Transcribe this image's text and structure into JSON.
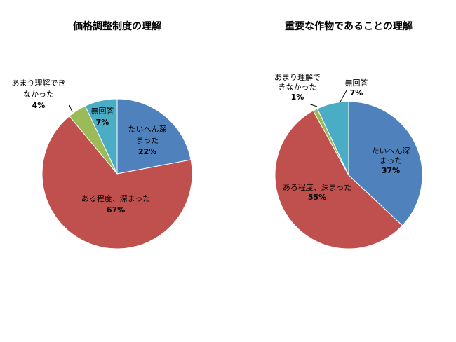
{
  "chart_data": [
    {
      "type": "pie",
      "title": "価格調整制度の理解",
      "slices": [
        {
          "label": "たいへん深まった",
          "lines": [
            "たいへん深",
            "まった"
          ],
          "value": 22,
          "pct": "22%",
          "color": "#4f81bd"
        },
        {
          "label": "ある程度、深まった",
          "lines": [
            "ある程度、深まった"
          ],
          "value": 67,
          "pct": "67%",
          "color": "#c0504d"
        },
        {
          "label": "あまり理解できなかった",
          "lines": [
            "あまり理解でき",
            "なかった"
          ],
          "value": 4,
          "pct": "4%",
          "color": "#9bbb59"
        },
        {
          "label": "無回答",
          "lines": [
            "無回答"
          ],
          "value": 7,
          "pct": "7%",
          "color": "#4bacc6"
        }
      ]
    },
    {
      "type": "pie",
      "title": "重要な作物であることの理解",
      "slices": [
        {
          "label": "たいへん深まった",
          "lines": [
            "たいへん深",
            "まった"
          ],
          "value": 37,
          "pct": "37%",
          "color": "#4f81bd"
        },
        {
          "label": "ある程度、深まった",
          "lines": [
            "ある程度、深まった"
          ],
          "value": 55,
          "pct": "55%",
          "color": "#c0504d"
        },
        {
          "label": "あまり理解できなかった",
          "lines": [
            "あまり理解で",
            "きなかった"
          ],
          "value": 1,
          "pct": "1%",
          "color": "#9bbb59"
        },
        {
          "label": "無回答",
          "lines": [
            "無回答"
          ],
          "value": 7,
          "pct": "7%",
          "color": "#4bacc6"
        }
      ]
    }
  ]
}
